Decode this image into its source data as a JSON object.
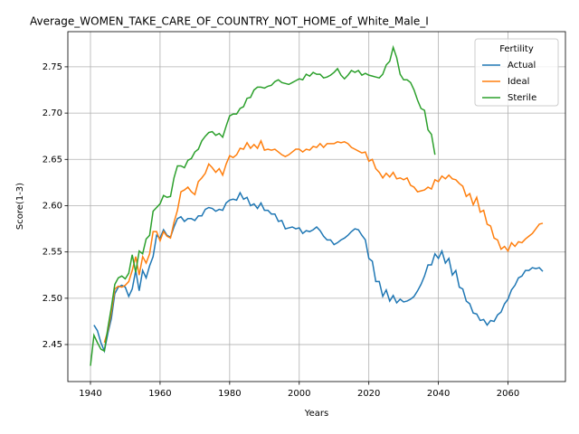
{
  "chart_data": {
    "type": "line",
    "title": "Average_WOMEN_TAKE_CARE_OF_COUNTRY_NOT_HOME_of_White_Male_I",
    "xlabel": "Years",
    "ylabel": "Score(1-3)",
    "xlim": [
      1933.5,
      2076.5
    ],
    "ylim": [
      2.41,
      2.788
    ],
    "xticks": [
      1940,
      1960,
      1980,
      2000,
      2020,
      2040,
      2060
    ],
    "yticks": [
      2.45,
      {
        "value": 2.5,
        "label": "2.50"
      },
      2.55,
      {
        "value": 2.6,
        "label": "2.60"
      },
      2.65,
      {
        "value": 2.7,
        "label": "2.70"
      },
      2.75
    ],
    "grid": true,
    "legend_title": "Fertility",
    "legend_loc": "upper right",
    "series": [
      {
        "name": "Actual",
        "color": "#1f77b4",
        "x": [
          1941,
          1942,
          1943,
          1944,
          1945,
          1946,
          1947,
          1948,
          1949,
          1950,
          1951,
          1952,
          1953,
          1954,
          1955,
          1956,
          1957,
          1958,
          1959,
          1960,
          1961,
          1962,
          1963,
          1964,
          1965,
          1966,
          1967,
          1968,
          1969,
          1970,
          1971,
          1972,
          1973,
          1974,
          1975,
          1976,
          1977,
          1978,
          1979,
          1980,
          1981,
          1982,
          1983,
          1984,
          1985,
          1986,
          1987,
          1988,
          1989,
          1990,
          1991,
          1992,
          1993,
          1994,
          1995,
          1996,
          1997,
          1998,
          1999,
          2000,
          2001,
          2002,
          2003,
          2004,
          2005,
          2006,
          2007,
          2008,
          2009,
          2010,
          2011,
          2012,
          2013,
          2014,
          2015,
          2016,
          2017,
          2018,
          2019,
          2020,
          2021,
          2022,
          2023,
          2024,
          2025,
          2026,
          2027,
          2028,
          2029,
          2030,
          2031,
          2032,
          2033,
          2034,
          2035,
          2036,
          2037,
          2038,
          2039,
          2040,
          2041,
          2042,
          2043,
          2044,
          2045,
          2046,
          2047,
          2048,
          2049,
          2050,
          2051,
          2052,
          2053,
          2054,
          2055,
          2056,
          2057,
          2058,
          2059,
          2060,
          2061,
          2062,
          2063,
          2064,
          2065,
          2066,
          2067,
          2068,
          2069,
          2070
        ],
        "values": [
          2.471,
          2.465,
          2.452,
          2.443,
          2.462,
          2.478,
          2.505,
          2.512,
          2.514,
          2.512,
          2.502,
          2.51,
          2.53,
          2.508,
          2.53,
          2.522,
          2.535,
          2.545,
          2.568,
          2.565,
          2.574,
          2.568,
          2.566,
          2.577,
          2.586,
          2.588,
          2.583,
          2.586,
          2.586,
          2.584,
          2.589,
          2.589,
          2.596,
          2.598,
          2.597,
          2.594,
          2.596,
          2.595,
          2.603,
          2.606,
          2.607,
          2.606,
          2.614,
          2.607,
          2.609,
          2.6,
          2.602,
          2.597,
          2.603,
          2.595,
          2.595,
          2.591,
          2.591,
          2.583,
          2.584,
          2.575,
          2.576,
          2.577,
          2.575,
          2.576,
          2.57,
          2.573,
          2.572,
          2.574,
          2.577,
          2.573,
          2.567,
          2.563,
          2.563,
          2.558,
          2.56,
          2.563,
          2.565,
          2.568,
          2.572,
          2.575,
          2.574,
          2.568,
          2.563,
          2.543,
          2.54,
          2.518,
          2.518,
          2.502,
          2.509,
          2.497,
          2.503,
          2.495,
          2.499,
          2.496,
          2.497,
          2.499,
          2.502,
          2.508,
          2.515,
          2.524,
          2.536,
          2.536,
          2.548,
          2.543,
          2.551,
          2.538,
          2.543,
          2.525,
          2.53,
          2.512,
          2.51,
          2.497,
          2.494,
          2.484,
          2.483,
          2.476,
          2.477,
          2.471,
          2.476,
          2.475,
          2.482,
          2.485,
          2.494,
          2.499,
          2.509,
          2.514,
          2.522,
          2.524,
          2.53,
          2.53,
          2.533,
          2.532,
          2.533,
          2.529
        ]
      },
      {
        "name": "Ideal",
        "color": "#ff7f0e",
        "x": [
          1944,
          1945,
          1946,
          1947,
          1948,
          1949,
          1950,
          1951,
          1952,
          1953,
          1954,
          1955,
          1956,
          1957,
          1958,
          1959,
          1960,
          1961,
          1962,
          1963,
          1964,
          1965,
          1966,
          1967,
          1968,
          1969,
          1970,
          1971,
          1972,
          1973,
          1974,
          1975,
          1976,
          1977,
          1978,
          1979,
          1980,
          1981,
          1982,
          1983,
          1984,
          1985,
          1986,
          1987,
          1988,
          1989,
          1990,
          1991,
          1992,
          1993,
          1994,
          1995,
          1996,
          1997,
          1998,
          1999,
          2000,
          2001,
          2002,
          2003,
          2004,
          2005,
          2006,
          2007,
          2008,
          2009,
          2010,
          2011,
          2012,
          2013,
          2014,
          2015,
          2016,
          2017,
          2018,
          2019,
          2020,
          2021,
          2022,
          2023,
          2024,
          2025,
          2026,
          2027,
          2028,
          2029,
          2030,
          2031,
          2032,
          2033,
          2034,
          2035,
          2036,
          2037,
          2038,
          2039,
          2040,
          2041,
          2042,
          2043,
          2044,
          2045,
          2046,
          2047,
          2048,
          2049,
          2050,
          2051,
          2052,
          2053,
          2054,
          2055,
          2056,
          2057,
          2058,
          2059,
          2060,
          2061,
          2062,
          2063,
          2064,
          2065,
          2066,
          2067,
          2068,
          2069,
          2070
        ],
        "values": [
          2.452,
          2.465,
          2.485,
          2.51,
          2.513,
          2.512,
          2.514,
          2.518,
          2.53,
          2.545,
          2.525,
          2.545,
          2.538,
          2.548,
          2.572,
          2.572,
          2.562,
          2.572,
          2.567,
          2.565,
          2.582,
          2.595,
          2.615,
          2.617,
          2.62,
          2.615,
          2.612,
          2.626,
          2.63,
          2.635,
          2.645,
          2.641,
          2.636,
          2.64,
          2.633,
          2.645,
          2.654,
          2.652,
          2.655,
          2.662,
          2.661,
          2.668,
          2.662,
          2.666,
          2.662,
          2.67,
          2.66,
          2.661,
          2.66,
          2.661,
          2.658,
          2.655,
          2.653,
          2.655,
          2.658,
          2.661,
          2.661,
          2.658,
          2.661,
          2.66,
          2.664,
          2.663,
          2.667,
          2.663,
          2.667,
          2.667,
          2.667,
          2.669,
          2.668,
          2.669,
          2.667,
          2.663,
          2.661,
          2.659,
          2.657,
          2.658,
          2.648,
          2.65,
          2.64,
          2.636,
          2.63,
          2.635,
          2.631,
          2.636,
          2.629,
          2.63,
          2.628,
          2.63,
          2.622,
          2.62,
          2.615,
          2.616,
          2.617,
          2.62,
          2.618,
          2.628,
          2.626,
          2.632,
          2.629,
          2.633,
          2.629,
          2.628,
          2.624,
          2.621,
          2.61,
          2.613,
          2.601,
          2.609,
          2.593,
          2.595,
          2.58,
          2.578,
          2.565,
          2.563,
          2.553,
          2.556,
          2.551,
          2.56,
          2.556,
          2.561,
          2.56,
          2.564,
          2.567,
          2.57,
          2.575,
          2.58,
          2.581
        ]
      },
      {
        "name": "Sterile",
        "color": "#2ca02c",
        "x": [
          1940,
          1941,
          1942,
          1943,
          1944,
          1945,
          1946,
          1947,
          1948,
          1949,
          1950,
          1951,
          1952,
          1953,
          1954,
          1955,
          1956,
          1957,
          1958,
          1959,
          1960,
          1961,
          1962,
          1963,
          1964,
          1965,
          1966,
          1967,
          1968,
          1969,
          1970,
          1971,
          1972,
          1973,
          1974,
          1975,
          1976,
          1977,
          1978,
          1979,
          1980,
          1981,
          1982,
          1983,
          1984,
          1985,
          1986,
          1987,
          1988,
          1989,
          1990,
          1991,
          1992,
          1993,
          1994,
          1995,
          1996,
          1997,
          1998,
          1999,
          2000,
          2001,
          2002,
          2003,
          2004,
          2005,
          2006,
          2007,
          2008,
          2009,
          2010,
          2011,
          2012,
          2013,
          2014,
          2015,
          2016,
          2017,
          2018,
          2019,
          2020,
          2021,
          2022,
          2023,
          2024,
          2025,
          2026,
          2027,
          2028,
          2029,
          2030,
          2031,
          2032,
          2033,
          2034,
          2035,
          2036,
          2037,
          2038,
          2039
        ],
        "values": [
          2.427,
          2.46,
          2.452,
          2.445,
          2.443,
          2.468,
          2.49,
          2.515,
          2.522,
          2.524,
          2.521,
          2.527,
          2.547,
          2.528,
          2.551,
          2.548,
          2.564,
          2.568,
          2.594,
          2.598,
          2.602,
          2.611,
          2.609,
          2.61,
          2.63,
          2.643,
          2.643,
          2.641,
          2.649,
          2.651,
          2.658,
          2.661,
          2.67,
          2.675,
          2.679,
          2.68,
          2.676,
          2.678,
          2.674,
          2.686,
          2.697,
          2.699,
          2.699,
          2.705,
          2.707,
          2.716,
          2.717,
          2.725,
          2.728,
          2.728,
          2.727,
          2.729,
          2.73,
          2.734,
          2.736,
          2.733,
          2.732,
          2.731,
          2.733,
          2.735,
          2.737,
          2.736,
          2.742,
          2.74,
          2.744,
          2.742,
          2.742,
          2.738,
          2.739,
          2.741,
          2.744,
          2.748,
          2.741,
          2.737,
          2.741,
          2.746,
          2.744,
          2.746,
          2.741,
          2.743,
          2.741,
          2.74,
          2.739,
          2.738,
          2.742,
          2.752,
          2.756,
          2.771,
          2.76,
          2.742,
          2.736,
          2.736,
          2.733,
          2.725,
          2.714,
          2.705,
          2.703,
          2.682,
          2.677,
          2.655
        ]
      }
    ]
  }
}
